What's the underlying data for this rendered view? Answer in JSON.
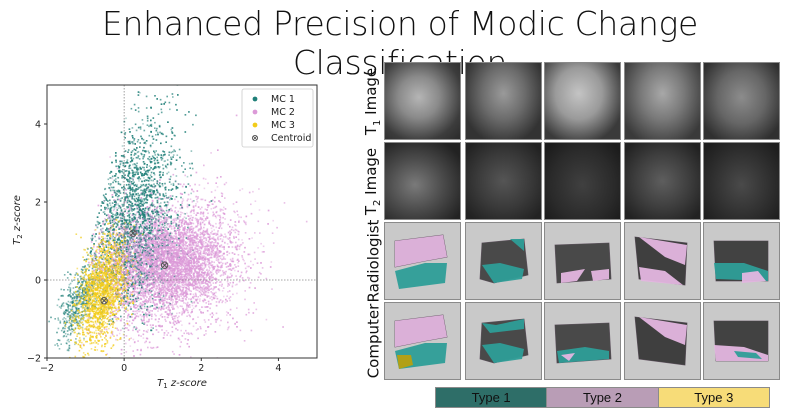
{
  "title": "Enhanced Precision of Modic Change Classification",
  "chart_data": {
    "type": "scatter",
    "title": "",
    "xlabel": "T1 z-score",
    "ylabel": "T2 z-score",
    "xlim": [
      -2,
      5
    ],
    "ylim": [
      -2,
      5
    ],
    "xticks": [
      -2,
      0,
      2,
      4
    ],
    "yticks": [
      -2,
      0,
      2,
      4
    ],
    "reference_lines": {
      "x": 0,
      "y": 0,
      "style": "dotted"
    },
    "legend": {
      "position": "upper right",
      "entries": [
        {
          "label": "MC 1",
          "color": "#1f7f78",
          "marker": "dot"
        },
        {
          "label": "MC 2",
          "color": "#dc9ad8",
          "marker": "dot"
        },
        {
          "label": "MC 3",
          "color": "#f2cc1a",
          "marker": "dot"
        },
        {
          "label": "Centroid",
          "color": "#555555",
          "marker": "crossed-circle"
        }
      ]
    },
    "centroids": [
      {
        "series": "MC 1",
        "x": 0.23,
        "y": 1.2
      },
      {
        "series": "MC 2",
        "x": 1.05,
        "y": 0.38
      },
      {
        "series": "MC 3",
        "x": -0.52,
        "y": -0.53
      }
    ],
    "note": "Background point clouds are dense and not individually readable; only axes, legend and centroid positions are read from the image."
  },
  "plot": {
    "xlabel_italic": "T",
    "xlabel_sub": "1",
    "xlabel_rest": " z-score",
    "ylabel_italic": "T",
    "ylabel_sub": "2",
    "ylabel_rest": " z-score",
    "xtick_labels": [
      "−2",
      "0",
      "2",
      "4"
    ],
    "ytick_labels": [
      "−2",
      "0",
      "2",
      "4"
    ],
    "legend_labels": [
      "MC 1",
      "MC 2",
      "MC 3",
      "Centroid"
    ]
  },
  "grid": {
    "rows": [
      {
        "label": "T",
        "sub": "1",
        "rest": " Image",
        "kind": "mri"
      },
      {
        "label": "T",
        "sub": "2",
        "rest": " Image",
        "kind": "mri"
      },
      {
        "label": "Radiologist",
        "sub": "",
        "rest": "",
        "kind": "seg"
      },
      {
        "label": "Computer",
        "sub": "",
        "rest": "",
        "kind": "seg"
      }
    ],
    "columns": 5
  },
  "legend_bar": {
    "items": [
      {
        "label": "Type 1",
        "color": "#2e6e68"
      },
      {
        "label": "Type 2",
        "color": "#b99db6"
      },
      {
        "label": "Type 3",
        "color": "#f7dc78"
      }
    ]
  },
  "colors": {
    "mc1": "#1f7f78",
    "mc2": "#dc9ad8",
    "mc3": "#f2cc1a",
    "seg_teal": "#2e9e98",
    "seg_pink": "#e4b6e0",
    "seg_yellow": "#b8a010",
    "seg_bg": "#c9c9c9"
  }
}
